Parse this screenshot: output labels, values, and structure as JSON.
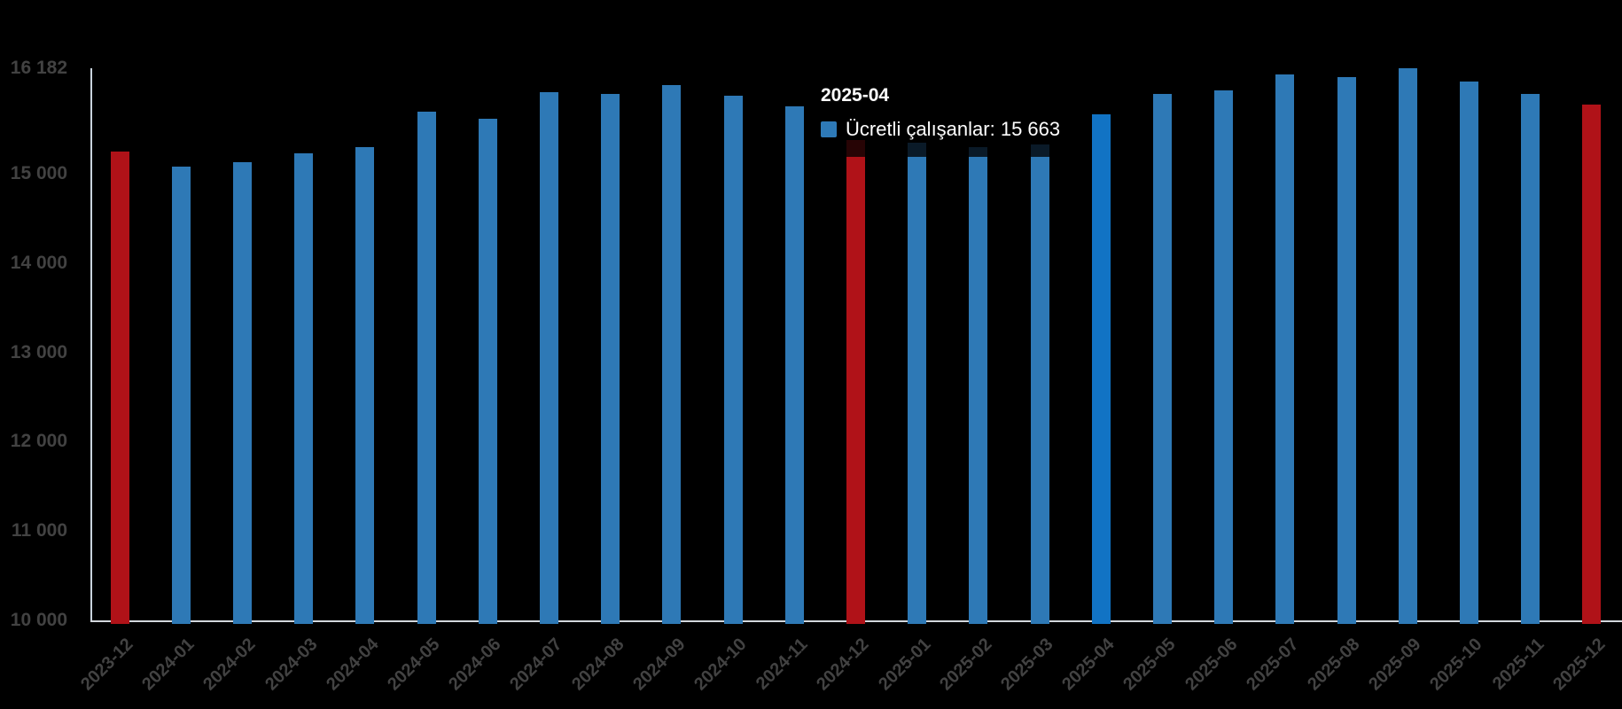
{
  "chart_data": {
    "type": "bar",
    "title": "",
    "xlabel": "",
    "ylabel": "",
    "categories": [
      "2023-12",
      "2024-01",
      "2024-02",
      "2024-03",
      "2024-04",
      "2024-05",
      "2024-06",
      "2024-07",
      "2024-08",
      "2024-09",
      "2024-10",
      "2024-11",
      "2024-12",
      "2025-01",
      "2025-02",
      "2025-03",
      "2025-04",
      "2025-05",
      "2025-06",
      "2025-07",
      "2025-08",
      "2025-09",
      "2025-10",
      "2025-11",
      "2025-12"
    ],
    "series": [
      {
        "name": "Ücretli çalışanlar",
        "values": [
          15249,
          15078,
          15127,
          15232,
          15299,
          15696,
          15614,
          15915,
          15898,
          15994,
          15872,
          15756,
          15376,
          15352,
          15302,
          15325,
          15663,
          15898,
          15938,
          16110,
          16086,
          16182,
          16030,
          15898,
          15772
        ]
      }
    ],
    "ylim": [
      10000,
      16182
    ],
    "yticks": [
      16182,
      15000,
      14000,
      13000,
      12000,
      11000,
      10000
    ],
    "ytick_labels": [
      "16 182",
      "15 000",
      "14 000",
      "13 000",
      "12 000",
      "11 000",
      "10 000"
    ],
    "grid": false,
    "legend_position": "none",
    "hovered_point": {
      "category": "2025-04",
      "value": 15663
    }
  },
  "tooltip": {
    "title": "2025-04",
    "text": "Ücretli çalışanlar: 15 663",
    "swatch": "swatch-blue"
  },
  "highlights": {
    "red_indices": [
      0,
      12,
      24
    ],
    "hover_index": 16
  },
  "colors": {
    "bar_blue": "#2e79b6",
    "bar_red": "#b01218",
    "bar_hover": "#1173c4",
    "swatch_blue": "#2e7ab8",
    "y_axis_line": "#c9d4de",
    "x_axis_line": "#d2d7dc",
    "tick_label": "#424242",
    "tooltip_text": "#ffffff",
    "background": "#000000"
  }
}
